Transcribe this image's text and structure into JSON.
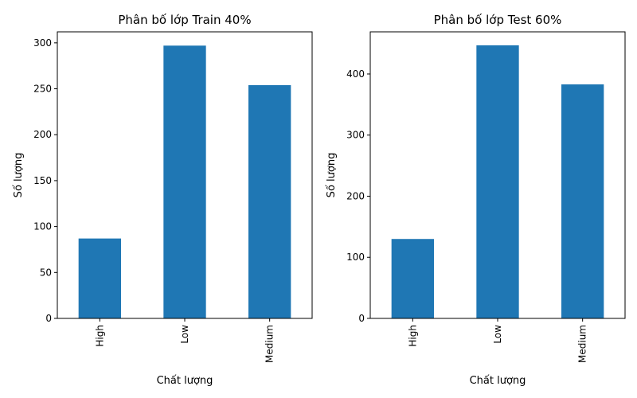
{
  "chart_data": [
    {
      "type": "bar",
      "title": "Phân bố lớp Train 40%",
      "xlabel": "Chất lượng",
      "ylabel": "Số lượng",
      "categories": [
        "High",
        "Low",
        "Medium"
      ],
      "values": [
        87,
        297,
        254
      ],
      "ylim": [
        0,
        312
      ],
      "yticks": [
        0,
        50,
        100,
        150,
        200,
        250,
        300
      ],
      "bar_color": "#1f77b4",
      "grid": false,
      "legend": "none"
    },
    {
      "type": "bar",
      "title": "Phân bố lớp Test 60%",
      "xlabel": "Chất lượng",
      "ylabel": "Số lượng",
      "categories": [
        "High",
        "Low",
        "Medium"
      ],
      "values": [
        130,
        447,
        383
      ],
      "ylim": [
        0,
        469
      ],
      "yticks": [
        0,
        100,
        200,
        300,
        400
      ],
      "bar_color": "#1f77b4",
      "grid": false,
      "legend": "none"
    }
  ]
}
